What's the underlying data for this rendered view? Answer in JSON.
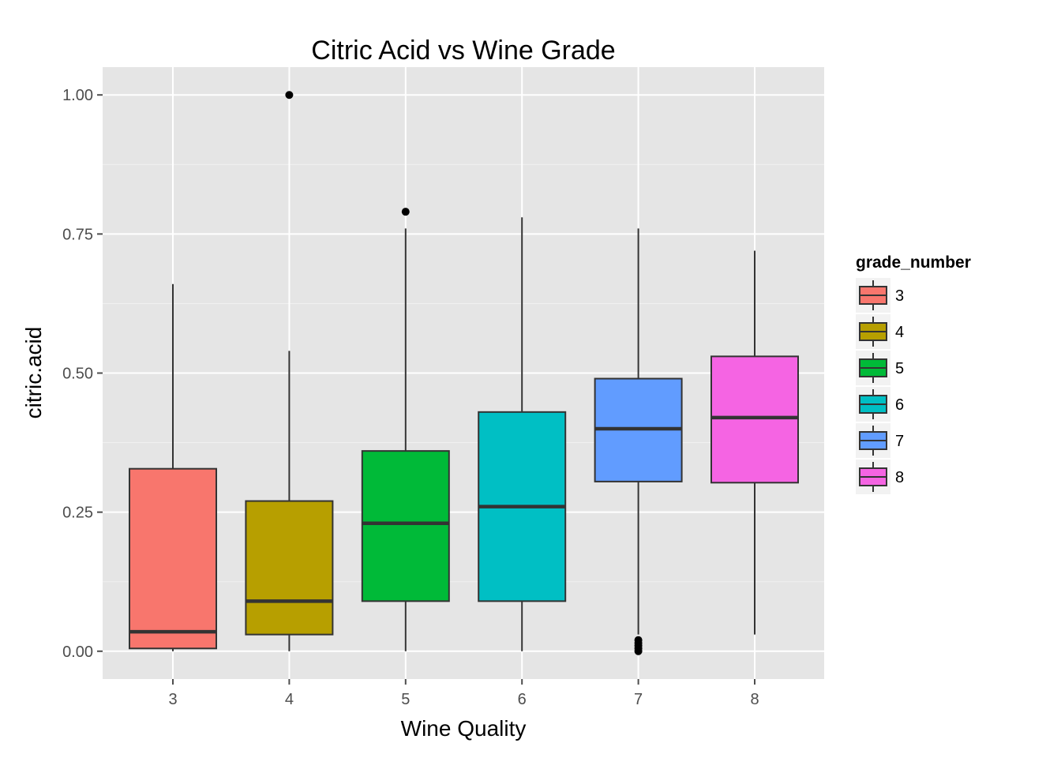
{
  "chart_data": {
    "type": "boxplot",
    "title": "Citric Acid vs Wine Grade",
    "xlabel": "Wine Quality",
    "ylabel": "citric.acid",
    "ylim": [
      -0.05,
      1.05
    ],
    "yticks": [
      "0.00",
      "0.25",
      "0.50",
      "0.75",
      "1.00"
    ],
    "ytick_values": [
      0,
      0.25,
      0.5,
      0.75,
      1.0
    ],
    "grid": true,
    "legend": {
      "title": "grade_number",
      "position": "right"
    },
    "categories": [
      "3",
      "4",
      "5",
      "6",
      "7",
      "8"
    ],
    "boxes": [
      {
        "category": "3",
        "color": "#F8766D",
        "min": 0.0,
        "q1": 0.005,
        "median": 0.035,
        "q3": 0.328,
        "max": 0.66,
        "outliers": []
      },
      {
        "category": "4",
        "color": "#B79F00",
        "min": 0.0,
        "q1": 0.03,
        "median": 0.09,
        "q3": 0.27,
        "max": 0.54,
        "outliers": [
          1.0
        ]
      },
      {
        "category": "5",
        "color": "#00BA38",
        "min": 0.0,
        "q1": 0.09,
        "median": 0.23,
        "q3": 0.36,
        "max": 0.76,
        "outliers": [
          0.79
        ]
      },
      {
        "category": "6",
        "color": "#00BFC4",
        "min": 0.0,
        "q1": 0.09,
        "median": 0.26,
        "q3": 0.43,
        "max": 0.78,
        "outliers": []
      },
      {
        "category": "7",
        "color": "#619CFF",
        "min": 0.03,
        "q1": 0.305,
        "median": 0.4,
        "q3": 0.49,
        "max": 0.76,
        "outliers": [
          0.0,
          0.005,
          0.01,
          0.015,
          0.02
        ]
      },
      {
        "category": "8",
        "color": "#F564E3",
        "min": 0.03,
        "q1": 0.303,
        "median": 0.42,
        "q3": 0.53,
        "max": 0.72,
        "outliers": []
      }
    ]
  }
}
